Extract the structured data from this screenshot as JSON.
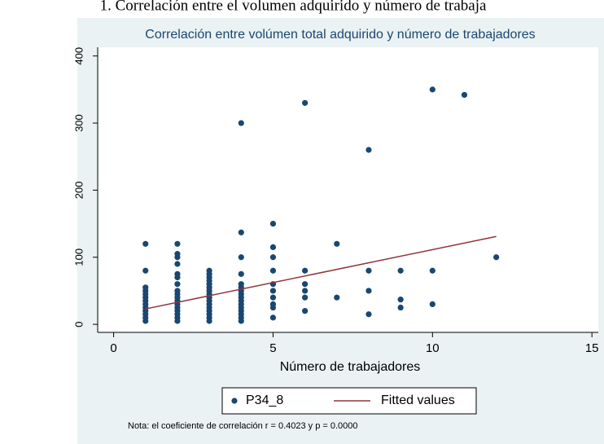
{
  "chart_data": {
    "type": "scatter",
    "caption": "1. Correlación entre el volumen adquirido y número de trabaja",
    "title": "Correlación entre volúmen total adquirido y número de trabajadores",
    "x_label": "Número de trabajadores",
    "note": "Nota: el coeficiente de correlación r = 0.4023 y p = 0.0000",
    "xlim": [
      -0.5,
      15.2
    ],
    "ylim": [
      -12,
      413
    ],
    "xticks": [
      0,
      5,
      10,
      15
    ],
    "yticks": [
      0,
      100,
      200,
      300,
      400
    ],
    "series": [
      {
        "name": "P34_8",
        "color": "#1a476f",
        "type": "scatter",
        "x": [
          1,
          1,
          1,
          1,
          1,
          1,
          1,
          1,
          1,
          1,
          1,
          1,
          1,
          2,
          2,
          2,
          2,
          2,
          2,
          2,
          2,
          2,
          2,
          2,
          2,
          2,
          2,
          2,
          2,
          2,
          3,
          3,
          3,
          3,
          3,
          3,
          3,
          3,
          3,
          3,
          3,
          3,
          3,
          3,
          3,
          3,
          4,
          4,
          4,
          4,
          4,
          4,
          4,
          4,
          4,
          4,
          4,
          4,
          4,
          4,
          4,
          4,
          5,
          5,
          5,
          5,
          5,
          5,
          5,
          5,
          5,
          5,
          6,
          6,
          6,
          6,
          6,
          6,
          7,
          7,
          8,
          8,
          8,
          8,
          9,
          9,
          9,
          10,
          10,
          10,
          11,
          12
        ],
        "values": [
          120,
          80,
          55,
          50,
          45,
          40,
          35,
          30,
          25,
          20,
          15,
          10,
          5,
          120,
          105,
          100,
          90,
          75,
          70,
          60,
          50,
          45,
          40,
          35,
          30,
          25,
          20,
          15,
          10,
          5,
          80,
          75,
          70,
          65,
          60,
          55,
          50,
          45,
          40,
          35,
          30,
          25,
          20,
          15,
          10,
          5,
          300,
          137,
          100,
          75,
          60,
          55,
          50,
          45,
          40,
          35,
          30,
          25,
          20,
          15,
          10,
          5,
          150,
          115,
          100,
          80,
          60,
          50,
          40,
          30,
          25,
          10,
          330,
          80,
          60,
          50,
          40,
          20,
          120,
          40,
          260,
          80,
          50,
          15,
          80,
          37,
          25,
          350,
          80,
          30,
          342,
          100
        ]
      },
      {
        "name": "Fitted values",
        "color": "#90353b",
        "type": "line",
        "x": [
          1,
          12
        ],
        "values": [
          23,
          131
        ]
      }
    ]
  }
}
